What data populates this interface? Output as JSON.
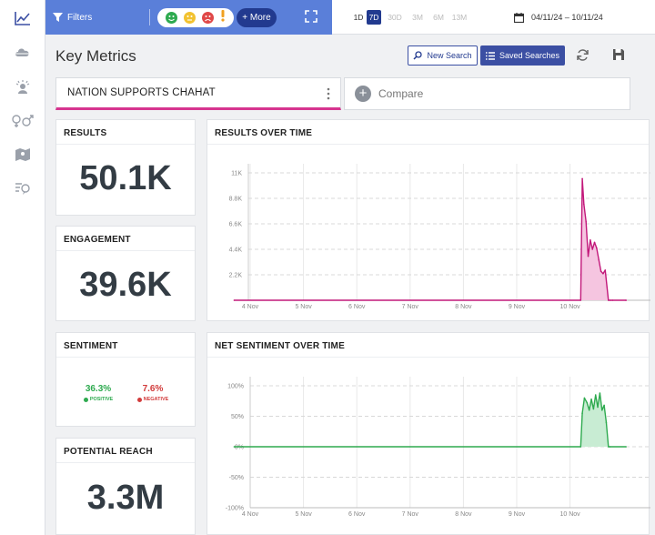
{
  "topbar": {
    "filters_label": "Filters",
    "more_label": "+ More",
    "date_ranges": [
      {
        "label": "1D",
        "enabled": true,
        "active": false
      },
      {
        "label": "7D",
        "enabled": true,
        "active": true
      },
      {
        "label": "30D",
        "enabled": false,
        "active": false
      },
      {
        "label": "3M",
        "enabled": false,
        "active": false
      },
      {
        "label": "6M",
        "enabled": false,
        "active": false
      },
      {
        "label": "13M",
        "enabled": false,
        "active": false
      }
    ],
    "date_range_text": "04/11/24 – 10/11/24"
  },
  "header": {
    "title": "Key Metrics",
    "new_search_label": "New Search",
    "saved_searches_label": "Saved Searches"
  },
  "tabs": {
    "main_search": "NATION SUPPORTS CHAHAT",
    "compare_label": "Compare"
  },
  "cards": {
    "results": {
      "title": "RESULTS",
      "value": "50.1K"
    },
    "engagement": {
      "title": "ENGAGEMENT",
      "value": "39.6K"
    },
    "sentiment": {
      "title": "SENTIMENT",
      "positive_pct": "36.3%",
      "positive_label": "POSITIVE",
      "negative_pct": "7.6%",
      "negative_label": "NEGATIVE"
    },
    "reach": {
      "title": "POTENTIAL REACH",
      "value": "3.3M"
    },
    "results_over_time_title": "RESULTS OVER TIME",
    "net_sentiment_title": "NET SENTIMENT OVER TIME"
  },
  "colors": {
    "accent": "#5a7fd9",
    "navy": "#223a8f",
    "results_line": "#c2187a",
    "results_fill": "#f5c5e0",
    "sentiment_line": "#2eaa4f",
    "sentiment_fill": "#c8ecd3",
    "positive": "#2eaa4f",
    "negative": "#d23b3b"
  },
  "chart_data": [
    {
      "type": "area",
      "title": "RESULTS OVER TIME",
      "x_ticks": [
        "4 Nov",
        "5 Nov",
        "6 Nov",
        "7 Nov",
        "8 Nov",
        "9 Nov",
        "10 Nov"
      ],
      "y_ticks": [
        "2.2K",
        "4.4K",
        "6.6K",
        "8.8K",
        "11K"
      ],
      "ylim": [
        0,
        11000
      ],
      "x": [
        -0.3,
        6.2,
        6.23,
        6.26,
        6.3,
        6.34,
        6.38,
        6.42,
        6.46,
        6.5,
        6.54,
        6.58,
        6.62,
        6.66,
        6.72,
        6.76,
        6.8,
        7.05,
        7.05
      ],
      "values": [
        0,
        0,
        10500,
        8300,
        6800,
        3800,
        5200,
        4400,
        5000,
        4500,
        3500,
        2500,
        2300,
        2600,
        0,
        0,
        0,
        0,
        0
      ]
    },
    {
      "type": "area",
      "title": "NET SENTIMENT OVER TIME",
      "x_ticks": [
        "4 Nov",
        "5 Nov",
        "6 Nov",
        "7 Nov",
        "8 Nov",
        "9 Nov",
        "10 Nov"
      ],
      "y_ticks": [
        "100%",
        "50%",
        "0%",
        "-50%",
        "-100%"
      ],
      "ylim": [
        -100,
        100
      ],
      "x": [
        -0.3,
        6.2,
        6.23,
        6.27,
        6.32,
        6.36,
        6.4,
        6.44,
        6.48,
        6.52,
        6.56,
        6.6,
        6.64,
        6.68,
        6.72,
        6.75,
        7.05
      ],
      "values": [
        0,
        0,
        55,
        80,
        72,
        60,
        78,
        62,
        85,
        65,
        88,
        60,
        68,
        40,
        0,
        0,
        0
      ]
    }
  ]
}
